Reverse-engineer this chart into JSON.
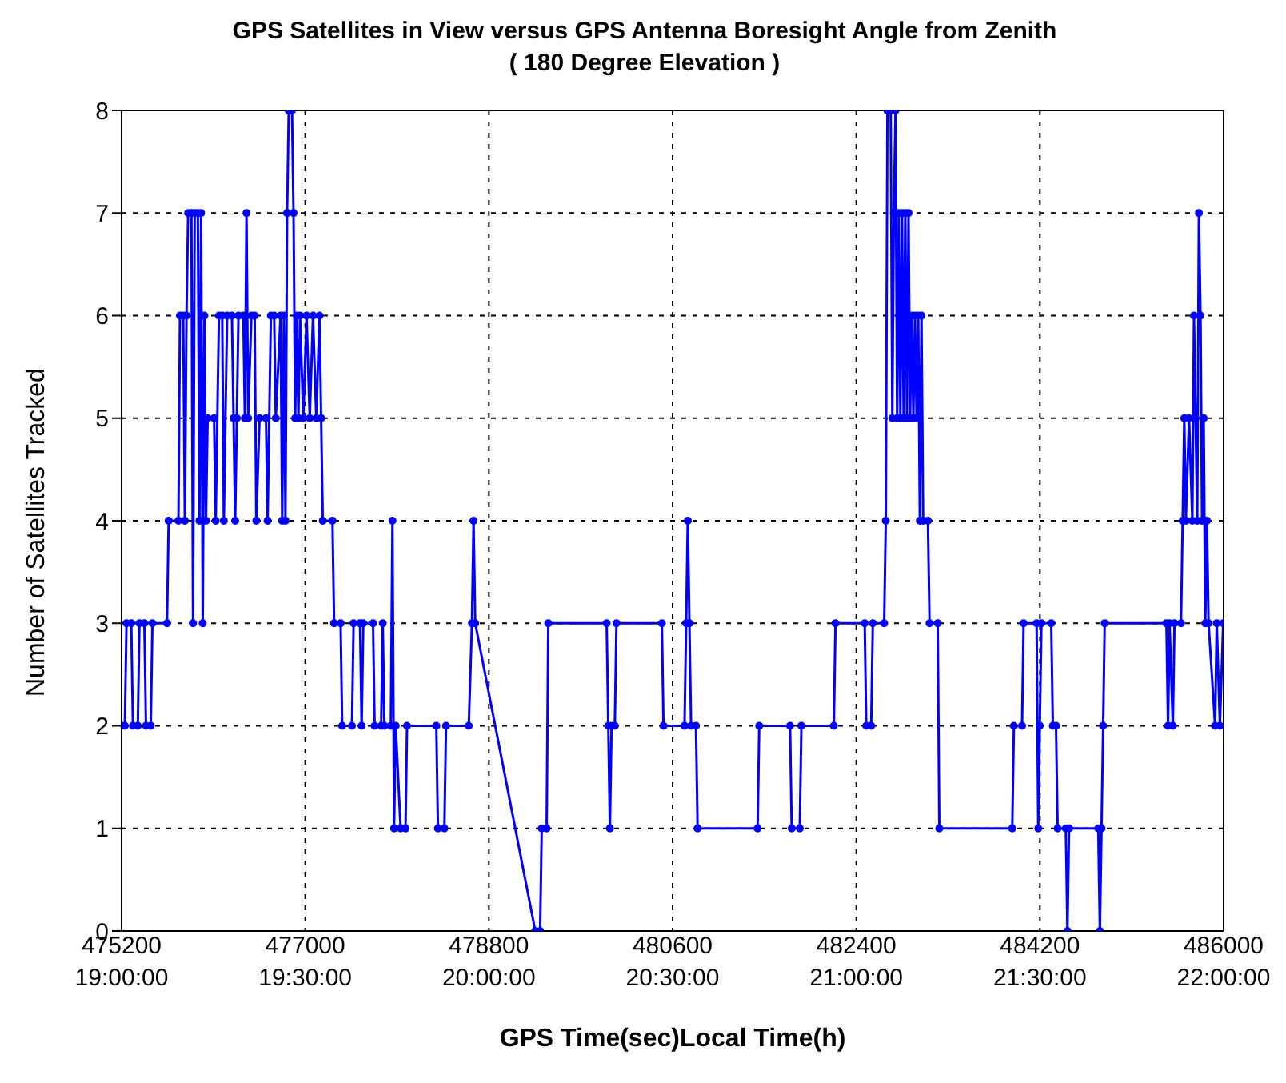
{
  "chart_data": {
    "type": "line",
    "title": "GPS Satellites in View versus GPS Antenna Boresight Angle from Zenith",
    "subtitle": "( 180 Degree Elevation )",
    "xlabel": "GPS Time(sec)Local Time(h)",
    "ylabel": "Number of Satellites Tracked",
    "xlim": [
      475200,
      486000
    ],
    "xticks": [
      475200,
      477000,
      478800,
      480600,
      482400,
      484200,
      486000
    ],
    "x2lim": [
      19,
      22
    ],
    "x2ticks": [
      {
        "value": 19,
        "label": "19:00:00"
      },
      {
        "value": 19.5,
        "label": "19:30:00"
      },
      {
        "value": 20,
        "label": "20:00:00"
      },
      {
        "value": 20.5,
        "label": "20:30:00"
      },
      {
        "value": 21,
        "label": "21:00:00"
      },
      {
        "value": 21.5,
        "label": "21:30:00"
      },
      {
        "value": 22,
        "label": "22:00:00"
      }
    ],
    "ylim": [
      0,
      8
    ],
    "yticks": [
      0,
      1,
      2,
      3,
      4,
      5,
      6,
      7,
      8
    ],
    "grid": true,
    "marker": "circle",
    "x": [
      475200,
      475232,
      475248,
      475295,
      475311,
      475359,
      475375,
      475423,
      475439,
      475486,
      475502,
      475645,
      475661,
      475757,
      475772,
      475804,
      475820,
      475836,
      475852,
      475884,
      475900,
      475916,
      475947,
      475963,
      475979,
      475995,
      476011,
      476027,
      476043,
      476106,
      476122,
      476154,
      476186,
      476202,
      476234,
      476281,
      476297,
      476313,
      476329,
      476345,
      476393,
      476408,
      476424,
      476440,
      476472,
      476504,
      476520,
      476552,
      476615,
      476631,
      476663,
      476695,
      476711,
      476758,
      476774,
      476790,
      476806,
      476822,
      476838,
      476870,
      476885,
      476901,
      476917,
      476933,
      476949,
      476981,
      477013,
      477044,
      477076,
      477108,
      477140,
      477156,
      477172,
      477267,
      477283,
      477347,
      477362,
      477458,
      477474,
      477537,
      477553,
      477569,
      477665,
      477680,
      477744,
      477760,
      477776,
      477839,
      477855,
      477871,
      477887,
      477935,
      477983,
      477998,
      478285,
      478301,
      478364,
      478380,
      478603,
      478634,
      478650,
      478666,
      479255,
      479302,
      479318,
      479366,
      479382,
      479954,
      479970,
      479986,
      480002,
      480034,
      480050,
      480495,
      480511,
      480717,
      480733,
      480749,
      480765,
      480781,
      480829,
      480845,
      481433,
      481449,
      481751,
      481767,
      481846,
      481862,
      482180,
      482196,
      482482,
      482498,
      482546,
      482562,
      482673,
      482689,
      482705,
      482737,
      482753,
      482768,
      482784,
      482800,
      482816,
      482832,
      482848,
      482864,
      482880,
      482896,
      482912,
      482927,
      482943,
      482959,
      482975,
      482991,
      483007,
      483023,
      483039,
      483055,
      483102,
      483118,
      483198,
      483214,
      483929,
      483945,
      484025,
      484040,
      484168,
      484184,
      484199,
      484215,
      484311,
      484327,
      484358,
      484374,
      484454,
      484470,
      484486,
      484772,
      484788,
      484804,
      484820,
      484835,
      485440,
      485456,
      485471,
      485503,
      485519,
      485583,
      485599,
      485615,
      485630,
      485662,
      485694,
      485710,
      485726,
      485742,
      485758,
      485774,
      485789,
      485805,
      485821,
      485837,
      485853,
      485917,
      485933,
      485964,
      485996
    ],
    "series": [
      {
        "color": "#0000ff",
        "values": [
          2,
          2,
          3,
          3,
          2,
          2,
          3,
          3,
          2,
          2,
          3,
          3,
          4,
          4,
          6,
          6,
          4,
          6,
          7,
          7,
          3,
          7,
          7,
          4,
          7,
          3,
          6,
          4,
          5,
          5,
          4,
          6,
          6,
          4,
          6,
          6,
          5,
          4,
          5,
          6,
          6,
          5,
          7,
          5,
          6,
          6,
          4,
          5,
          5,
          4,
          6,
          6,
          5,
          6,
          4,
          6,
          4,
          7,
          8,
          8,
          7,
          5,
          6,
          5,
          6,
          5,
          6,
          5,
          6,
          5,
          6,
          5,
          4,
          4,
          3,
          3,
          2,
          2,
          3,
          3,
          2,
          3,
          3,
          2,
          2,
          3,
          2,
          2,
          4,
          1,
          2,
          1,
          1,
          2,
          2,
          1,
          1,
          2,
          2,
          3,
          4,
          3,
          0,
          0,
          1,
          1,
          3,
          3,
          2,
          1,
          2,
          2,
          3,
          3,
          2,
          2,
          3,
          4,
          3,
          2,
          2,
          1,
          1,
          2,
          2,
          1,
          1,
          2,
          2,
          3,
          3,
          2,
          2,
          3,
          3,
          4,
          8,
          8,
          5,
          7,
          8,
          5,
          7,
          5,
          7,
          5,
          7,
          5,
          7,
          5,
          6,
          5,
          6,
          5,
          6,
          4,
          6,
          4,
          4,
          3,
          3,
          1,
          1,
          2,
          2,
          3,
          3,
          1,
          2,
          3,
          3,
          2,
          2,
          1,
          1,
          0,
          1,
          1,
          0,
          1,
          2,
          3,
          3,
          2,
          3,
          2,
          3,
          3,
          4,
          5,
          4,
          5,
          4,
          6,
          5,
          4,
          7,
          6,
          4,
          5,
          3,
          4,
          3,
          2,
          3,
          2,
          3
        ]
      }
    ]
  }
}
